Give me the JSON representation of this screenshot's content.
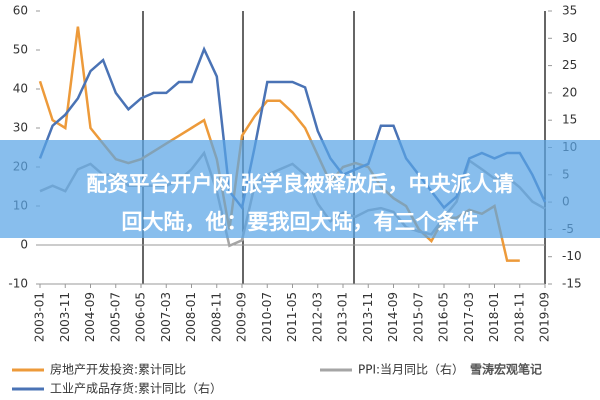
{
  "chart_data": {
    "type": "line",
    "categories": [
      "2003-01",
      null,
      "2003-11",
      null,
      "2004-09",
      null,
      "2005-07",
      null,
      "2006-05",
      null,
      "2007-03",
      null,
      "2008-01",
      null,
      "2008-11",
      null,
      "2009-09",
      null,
      "2010-07",
      null,
      "2011-05",
      null,
      "2012-03",
      null,
      "2013-01",
      null,
      "2013-11",
      null,
      "2014-09",
      null,
      "2015-07",
      null,
      "2016-05",
      null,
      "2017-03",
      null,
      "2018-01",
      null,
      "2018-11",
      null,
      "2019-09"
    ],
    "series": [
      {
        "name": "房地产开发投资:累计同比",
        "color": "#ED9A3A",
        "values": [
          42,
          32,
          30,
          56,
          30,
          26,
          22,
          21,
          22,
          24,
          26,
          28,
          30,
          32,
          22,
          4,
          28,
          33,
          37,
          37,
          34,
          30,
          23,
          16,
          20,
          21,
          20,
          15,
          12,
          10,
          4,
          1,
          7,
          7,
          9,
          8,
          10,
          -4,
          -4,
          null,
          null
        ]
      },
      {
        "name": "PPI:当月同比（右）",
        "color": "#A5A5A5",
        "axis": "y2",
        "values": [
          2,
          3,
          2,
          6,
          7,
          5,
          5,
          3,
          3,
          3,
          3,
          4,
          6,
          9,
          2,
          -8,
          -7,
          3,
          5,
          6,
          7,
          5,
          -0.3,
          -3.5,
          -2,
          -2.7,
          -1.5,
          -1.1,
          -1.8,
          -4.6,
          -5.4,
          -5.9,
          -2.8,
          0.1,
          7.6,
          6,
          4.3,
          4.6,
          2.7,
          0.1,
          -1.2
        ]
      },
      {
        "name": "工业产成品存货:累计同比（右）",
        "color": "#4A73B5",
        "axis": "y2",
        "values": [
          8,
          14,
          16,
          19,
          24,
          26,
          20,
          17,
          19,
          20,
          20,
          22,
          22,
          28,
          23,
          2,
          -1,
          10,
          22,
          22,
          22,
          21,
          13,
          8,
          5,
          6,
          7,
          14,
          14,
          8,
          5,
          2,
          -1,
          1,
          8,
          9,
          8,
          9,
          9,
          5,
          0
        ]
      }
    ],
    "ylim": [
      -10,
      60
    ],
    "yticks": [
      -10,
      0,
      10,
      20,
      30,
      40,
      50,
      60
    ],
    "y2lim": [
      -15,
      35
    ],
    "y2ticks": [
      -15,
      -10,
      -5,
      0,
      5,
      10,
      15,
      20,
      25,
      30,
      35
    ]
  },
  "overlay": {
    "line1": "配资平台开户网  张学良被释放后，中央派人请",
    "line2": "回大陆，他：要我回大陆，有三个条件"
  },
  "watermark": "雪涛宏观笔记"
}
